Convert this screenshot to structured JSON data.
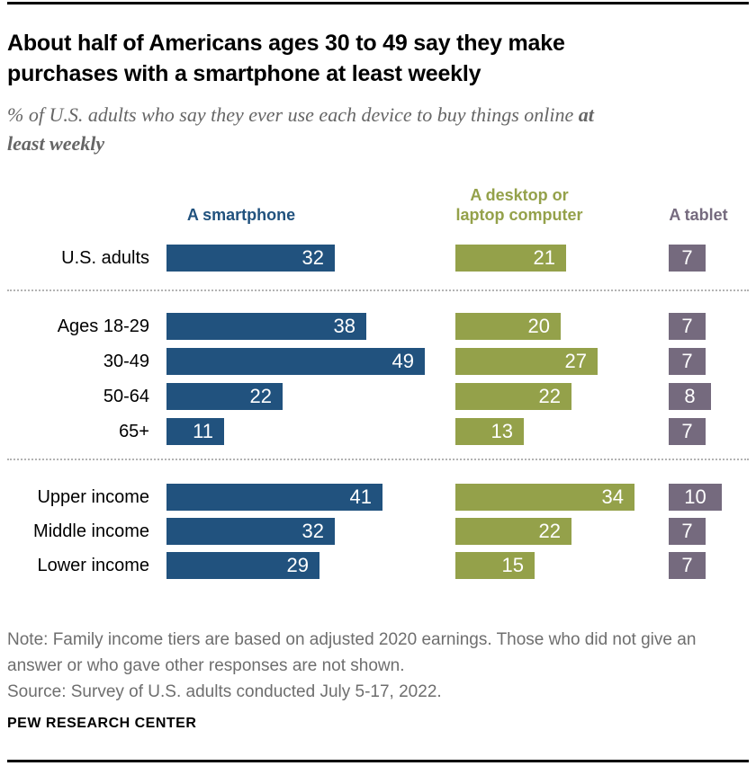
{
  "header": {
    "title_lines": [
      "About half of Americans ages 30 to 49 say they make",
      "purchases with a smartphone at least weekly"
    ],
    "subtitle": {
      "line1_regular": "% of U.S. adults who say they ever use each device to buy things online ",
      "line1_bold": "at",
      "line2_bold": "least weekly"
    }
  },
  "chart_data": {
    "type": "bar",
    "unit": "percent",
    "orientation": "horizontal",
    "value_range": [
      0,
      49
    ],
    "series": [
      {
        "name": "A smartphone",
        "label_lines": [
          "A smartphone"
        ],
        "color": "#21527E"
      },
      {
        "name": "A desktop or laptop computer",
        "label_lines": [
          "A desktop or",
          "laptop computer"
        ],
        "color": "#94A14A"
      },
      {
        "name": "A tablet",
        "label_lines": [
          "A tablet"
        ],
        "color": "#756A7E"
      }
    ],
    "groups": [
      {
        "name": "overall",
        "rows": [
          {
            "label": "U.S. adults",
            "values": [
              32,
              21,
              7
            ]
          }
        ]
      },
      {
        "name": "age",
        "rows": [
          {
            "label": "Ages 18-29",
            "values": [
              38,
              20,
              7
            ]
          },
          {
            "label": "30-49",
            "values": [
              49,
              27,
              7
            ]
          },
          {
            "label": "50-64",
            "values": [
              22,
              22,
              8
            ]
          },
          {
            "label": "65+",
            "values": [
              11,
              13,
              7
            ]
          }
        ]
      },
      {
        "name": "income",
        "rows": [
          {
            "label": "Upper income",
            "values": [
              41,
              34,
              10
            ]
          },
          {
            "label": "Middle income",
            "values": [
              32,
              22,
              7
            ]
          },
          {
            "label": "Lower income",
            "values": [
              29,
              15,
              7
            ]
          }
        ]
      }
    ]
  },
  "footer": {
    "note_lines": [
      "Note: Family income tiers are based on adjusted 2020 earnings. Those who did not give an",
      "answer or who gave other responses are not shown."
    ],
    "source": "Source: Survey of U.S. adults conducted July 5-17, 2022.",
    "brand": "PEW RESEARCH CENTER"
  }
}
